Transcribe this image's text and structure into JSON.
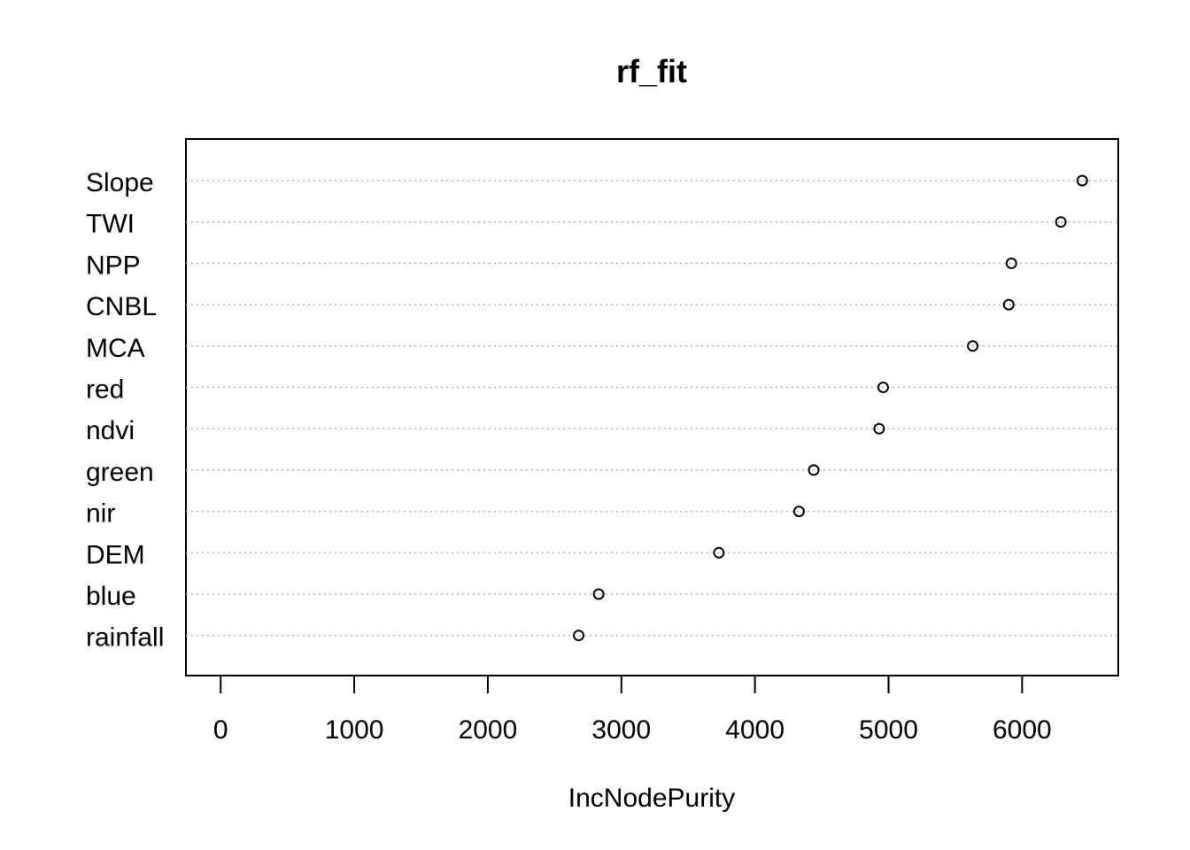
{
  "chart_data": {
    "type": "scatter",
    "title": "rf_fit",
    "xlabel": "IncNodePurity",
    "ylabel": "",
    "xlim": [
      -260,
      6720
    ],
    "x_ticks": [
      0,
      1000,
      2000,
      3000,
      4000,
      5000,
      6000
    ],
    "x_tick_labels": [
      "0",
      "1000",
      "2000",
      "3000",
      "4000",
      "5000",
      "6000"
    ],
    "categories": [
      "Slope",
      "TWI",
      "NPP",
      "CNBL",
      "MCA",
      "red",
      "ndvi",
      "green",
      "nir",
      "DEM",
      "blue",
      "rainfall"
    ],
    "values": [
      6450,
      6290,
      5920,
      5900,
      5630,
      4960,
      4930,
      4440,
      4330,
      3730,
      2830,
      2680
    ],
    "grid": "horizontal dotted lines per category",
    "legend": "none",
    "marker": "open-circle"
  }
}
